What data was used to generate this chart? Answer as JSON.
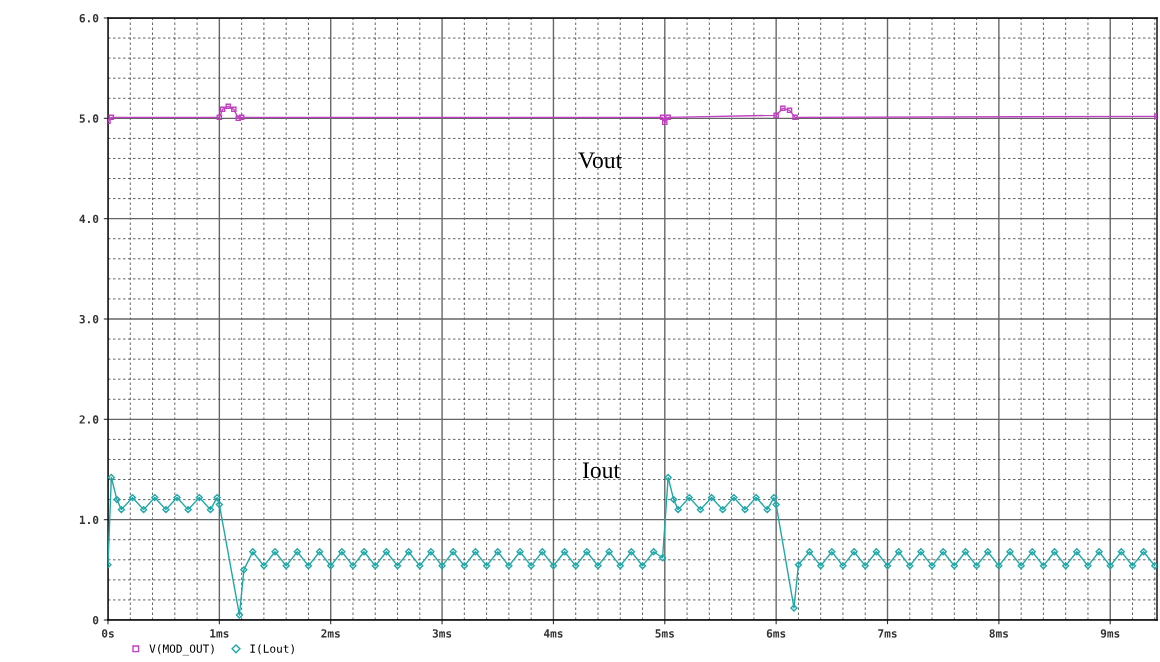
{
  "chart_data": {
    "type": "line",
    "xlim": [
      0,
      9.42
    ],
    "ylim": [
      0,
      6.0
    ],
    "xticks": [
      {
        "value": 0,
        "label": "0s"
      },
      {
        "value": 1,
        "label": "1ms"
      },
      {
        "value": 2,
        "label": "2ms"
      },
      {
        "value": 3,
        "label": "3ms"
      },
      {
        "value": 4,
        "label": "4ms"
      },
      {
        "value": 5,
        "label": "5ms"
      },
      {
        "value": 6,
        "label": "6ms"
      },
      {
        "value": 7,
        "label": "7ms"
      },
      {
        "value": 8,
        "label": "8ms"
      },
      {
        "value": 9,
        "label": "9ms"
      }
    ],
    "yticks": [
      {
        "value": 0,
        "label": "0"
      },
      {
        "value": 1,
        "label": "1.0"
      },
      {
        "value": 2,
        "label": "2.0"
      },
      {
        "value": 3,
        "label": "3.0"
      },
      {
        "value": 4,
        "label": "4.0"
      },
      {
        "value": 5,
        "label": "5.0"
      },
      {
        "value": 6,
        "label": "6.0"
      }
    ],
    "grid": true,
    "legend": "bottom left",
    "series": [
      {
        "name": "V(MOD_OUT)",
        "color": "#c040c0",
        "marker": "square",
        "x": [
          0,
          0.03,
          1.0,
          1.03,
          1.08,
          1.13,
          1.17,
          1.2,
          4.98,
          5.0,
          5.03,
          6.0,
          6.06,
          6.12,
          6.17,
          9.42
        ],
        "values": [
          4.97,
          5.01,
          5.01,
          5.09,
          5.12,
          5.09,
          5.0,
          5.01,
          5.01,
          4.96,
          5.01,
          5.03,
          5.1,
          5.08,
          5.01,
          5.02
        ]
      },
      {
        "name": "I(Lout)",
        "color": "#20a8a8",
        "marker": "diamond",
        "x": [
          0,
          0.03,
          0.08,
          0.12,
          0.22,
          0.32,
          0.42,
          0.52,
          0.62,
          0.72,
          0.82,
          0.92,
          0.98,
          1.0,
          1.18,
          1.22,
          1.3,
          1.4,
          1.5,
          1.6,
          1.7,
          1.8,
          1.9,
          2.0,
          2.1,
          2.2,
          2.3,
          2.4,
          2.5,
          2.6,
          2.7,
          2.8,
          2.9,
          3.0,
          3.1,
          3.2,
          3.3,
          3.4,
          3.5,
          3.6,
          3.7,
          3.8,
          3.9,
          4.0,
          4.1,
          4.2,
          4.3,
          4.4,
          4.5,
          4.6,
          4.7,
          4.8,
          4.9,
          4.98,
          5.03,
          5.08,
          5.12,
          5.22,
          5.32,
          5.42,
          5.52,
          5.62,
          5.72,
          5.82,
          5.92,
          5.98,
          6.0,
          6.16,
          6.2,
          6.3,
          6.4,
          6.5,
          6.6,
          6.7,
          6.8,
          6.9,
          7.0,
          7.1,
          7.2,
          7.3,
          7.4,
          7.5,
          7.6,
          7.7,
          7.8,
          7.9,
          8.0,
          8.1,
          8.2,
          8.3,
          8.4,
          8.5,
          8.6,
          8.7,
          8.8,
          8.9,
          9.0,
          9.1,
          9.2,
          9.3,
          9.4
        ],
        "values": [
          0.55,
          1.42,
          1.2,
          1.1,
          1.22,
          1.1,
          1.22,
          1.1,
          1.22,
          1.1,
          1.22,
          1.1,
          1.22,
          1.15,
          0.05,
          0.5,
          0.68,
          0.54,
          0.68,
          0.54,
          0.68,
          0.54,
          0.68,
          0.54,
          0.68,
          0.54,
          0.68,
          0.54,
          0.68,
          0.54,
          0.68,
          0.54,
          0.68,
          0.54,
          0.68,
          0.54,
          0.68,
          0.54,
          0.68,
          0.54,
          0.68,
          0.54,
          0.68,
          0.54,
          0.68,
          0.54,
          0.68,
          0.54,
          0.68,
          0.54,
          0.68,
          0.54,
          0.68,
          0.62,
          1.42,
          1.2,
          1.1,
          1.22,
          1.1,
          1.22,
          1.1,
          1.22,
          1.1,
          1.22,
          1.1,
          1.22,
          1.15,
          0.12,
          0.55,
          0.68,
          0.54,
          0.68,
          0.54,
          0.68,
          0.54,
          0.68,
          0.54,
          0.68,
          0.54,
          0.68,
          0.54,
          0.68,
          0.54,
          0.68,
          0.54,
          0.68,
          0.54,
          0.68,
          0.54,
          0.68,
          0.54,
          0.68,
          0.54,
          0.68,
          0.54,
          0.68,
          0.54,
          0.68,
          0.54,
          0.68,
          0.54
        ]
      }
    ],
    "annotations": [
      "Vout",
      "Iout"
    ]
  }
}
